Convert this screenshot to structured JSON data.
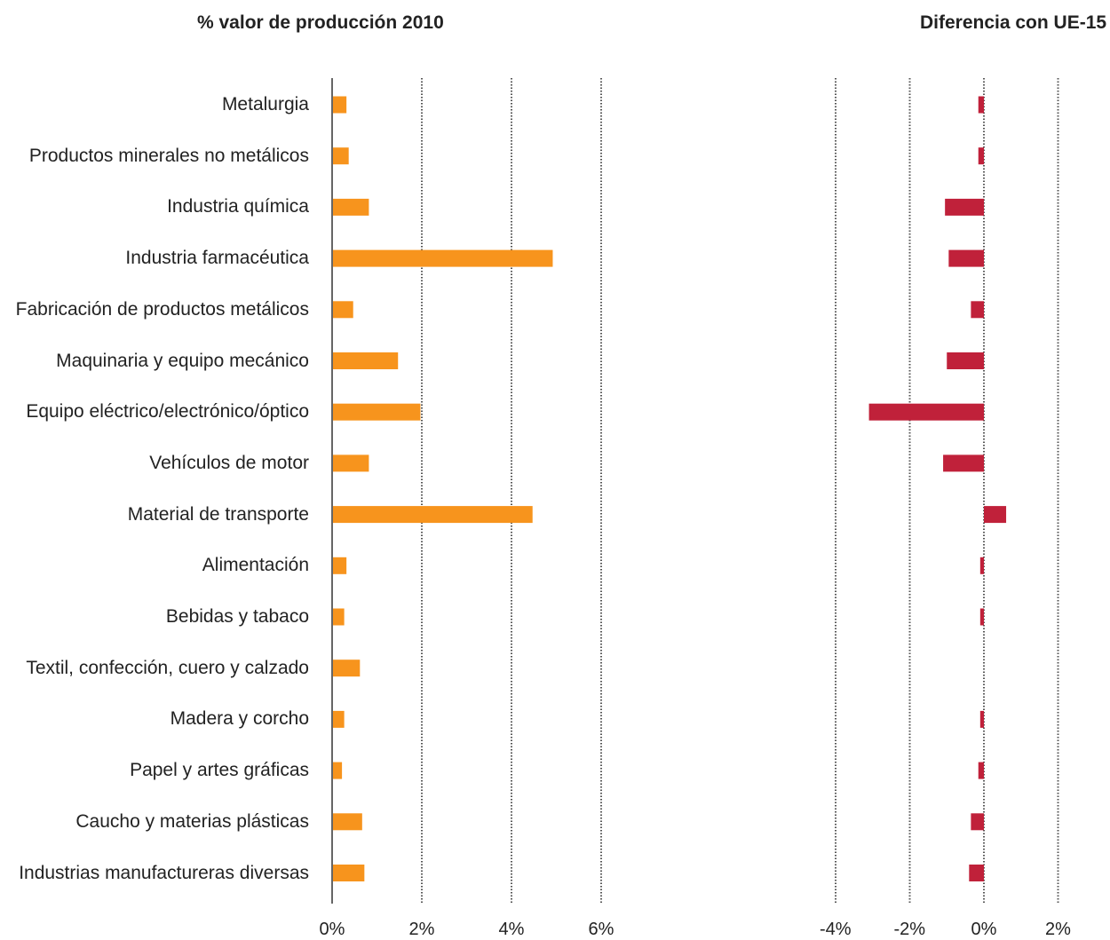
{
  "chart_data": [
    {
      "type": "bar",
      "orientation": "horizontal",
      "title": "% valor de producción 2010",
      "xlabel": "",
      "ylabel": "",
      "categories": [
        "Metalurgia",
        "Productos minerales no metálicos",
        "Industria química",
        "Industria farmacéutica",
        "Fabricación de productos metálicos",
        "Maquinaria y equipo mecánico",
        "Equipo eléctrico/electrónico/óptico",
        "Vehículos de motor",
        "Material de transporte",
        "Alimentación",
        "Bebidas y tabaco",
        "Textil, confección, cuero y calzado",
        "Madera y corcho",
        "Papel y artes gráficas",
        "Caucho y materias plásticas",
        "Industrias manufactureras diversas"
      ],
      "values": [
        0.3,
        0.35,
        0.8,
        4.9,
        0.45,
        1.45,
        1.95,
        0.8,
        4.45,
        0.3,
        0.25,
        0.6,
        0.25,
        0.2,
        0.65,
        0.7
      ],
      "xlim": [
        0,
        6
      ],
      "ticks": [
        "0%",
        "2%",
        "4%",
        "6%"
      ],
      "tick_values": [
        0,
        2,
        4,
        6
      ],
      "grid": true,
      "bar_color": "#f7941d"
    },
    {
      "type": "bar",
      "orientation": "horizontal",
      "title": "Diferencia con UE-15",
      "xlabel": "",
      "ylabel": "",
      "values": [
        -0.15,
        -0.15,
        -1.05,
        -0.95,
        -0.35,
        -1.0,
        -3.1,
        -1.1,
        0.6,
        -0.1,
        -0.1,
        0.0,
        -0.1,
        -0.15,
        -0.35,
        -0.4
      ],
      "xlim": [
        -4,
        2
      ],
      "ticks": [
        "-4%",
        "-2%",
        "0%",
        "2%"
      ],
      "tick_values": [
        -4,
        -2,
        0,
        2
      ],
      "grid": true,
      "bar_color": "#c0213a"
    }
  ]
}
